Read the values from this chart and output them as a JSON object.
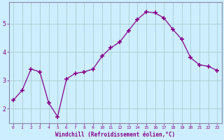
{
  "x": [
    0,
    1,
    2,
    3,
    4,
    5,
    6,
    7,
    8,
    9,
    10,
    11,
    12,
    13,
    14,
    15,
    16,
    17,
    18,
    19,
    20,
    21,
    22,
    23
  ],
  "y": [
    2.3,
    2.65,
    3.4,
    3.3,
    2.2,
    1.72,
    3.05,
    3.25,
    3.3,
    3.4,
    3.85,
    4.15,
    4.35,
    4.75,
    5.15,
    5.42,
    5.38,
    5.2,
    4.8,
    4.45,
    3.8,
    3.55,
    3.5,
    3.35
  ],
  "line_color": "#880088",
  "marker": "+",
  "marker_size": 4,
  "marker_lw": 1.2,
  "bg_color": "#cceeff",
  "grid_color": "#aacccc",
  "xlabel": "Windchill (Refroidissement éolien,°C)",
  "ylim": [
    1.5,
    5.75
  ],
  "yticks": [
    2,
    3,
    4,
    5
  ],
  "xticks": [
    0,
    1,
    2,
    3,
    4,
    5,
    6,
    7,
    8,
    9,
    10,
    11,
    12,
    13,
    14,
    15,
    16,
    17,
    18,
    19,
    20,
    21,
    22,
    23
  ],
  "xlabel_color": "#880088",
  "tick_color": "#880088",
  "axis_color": "#880088",
  "spine_color": "#8888aa"
}
